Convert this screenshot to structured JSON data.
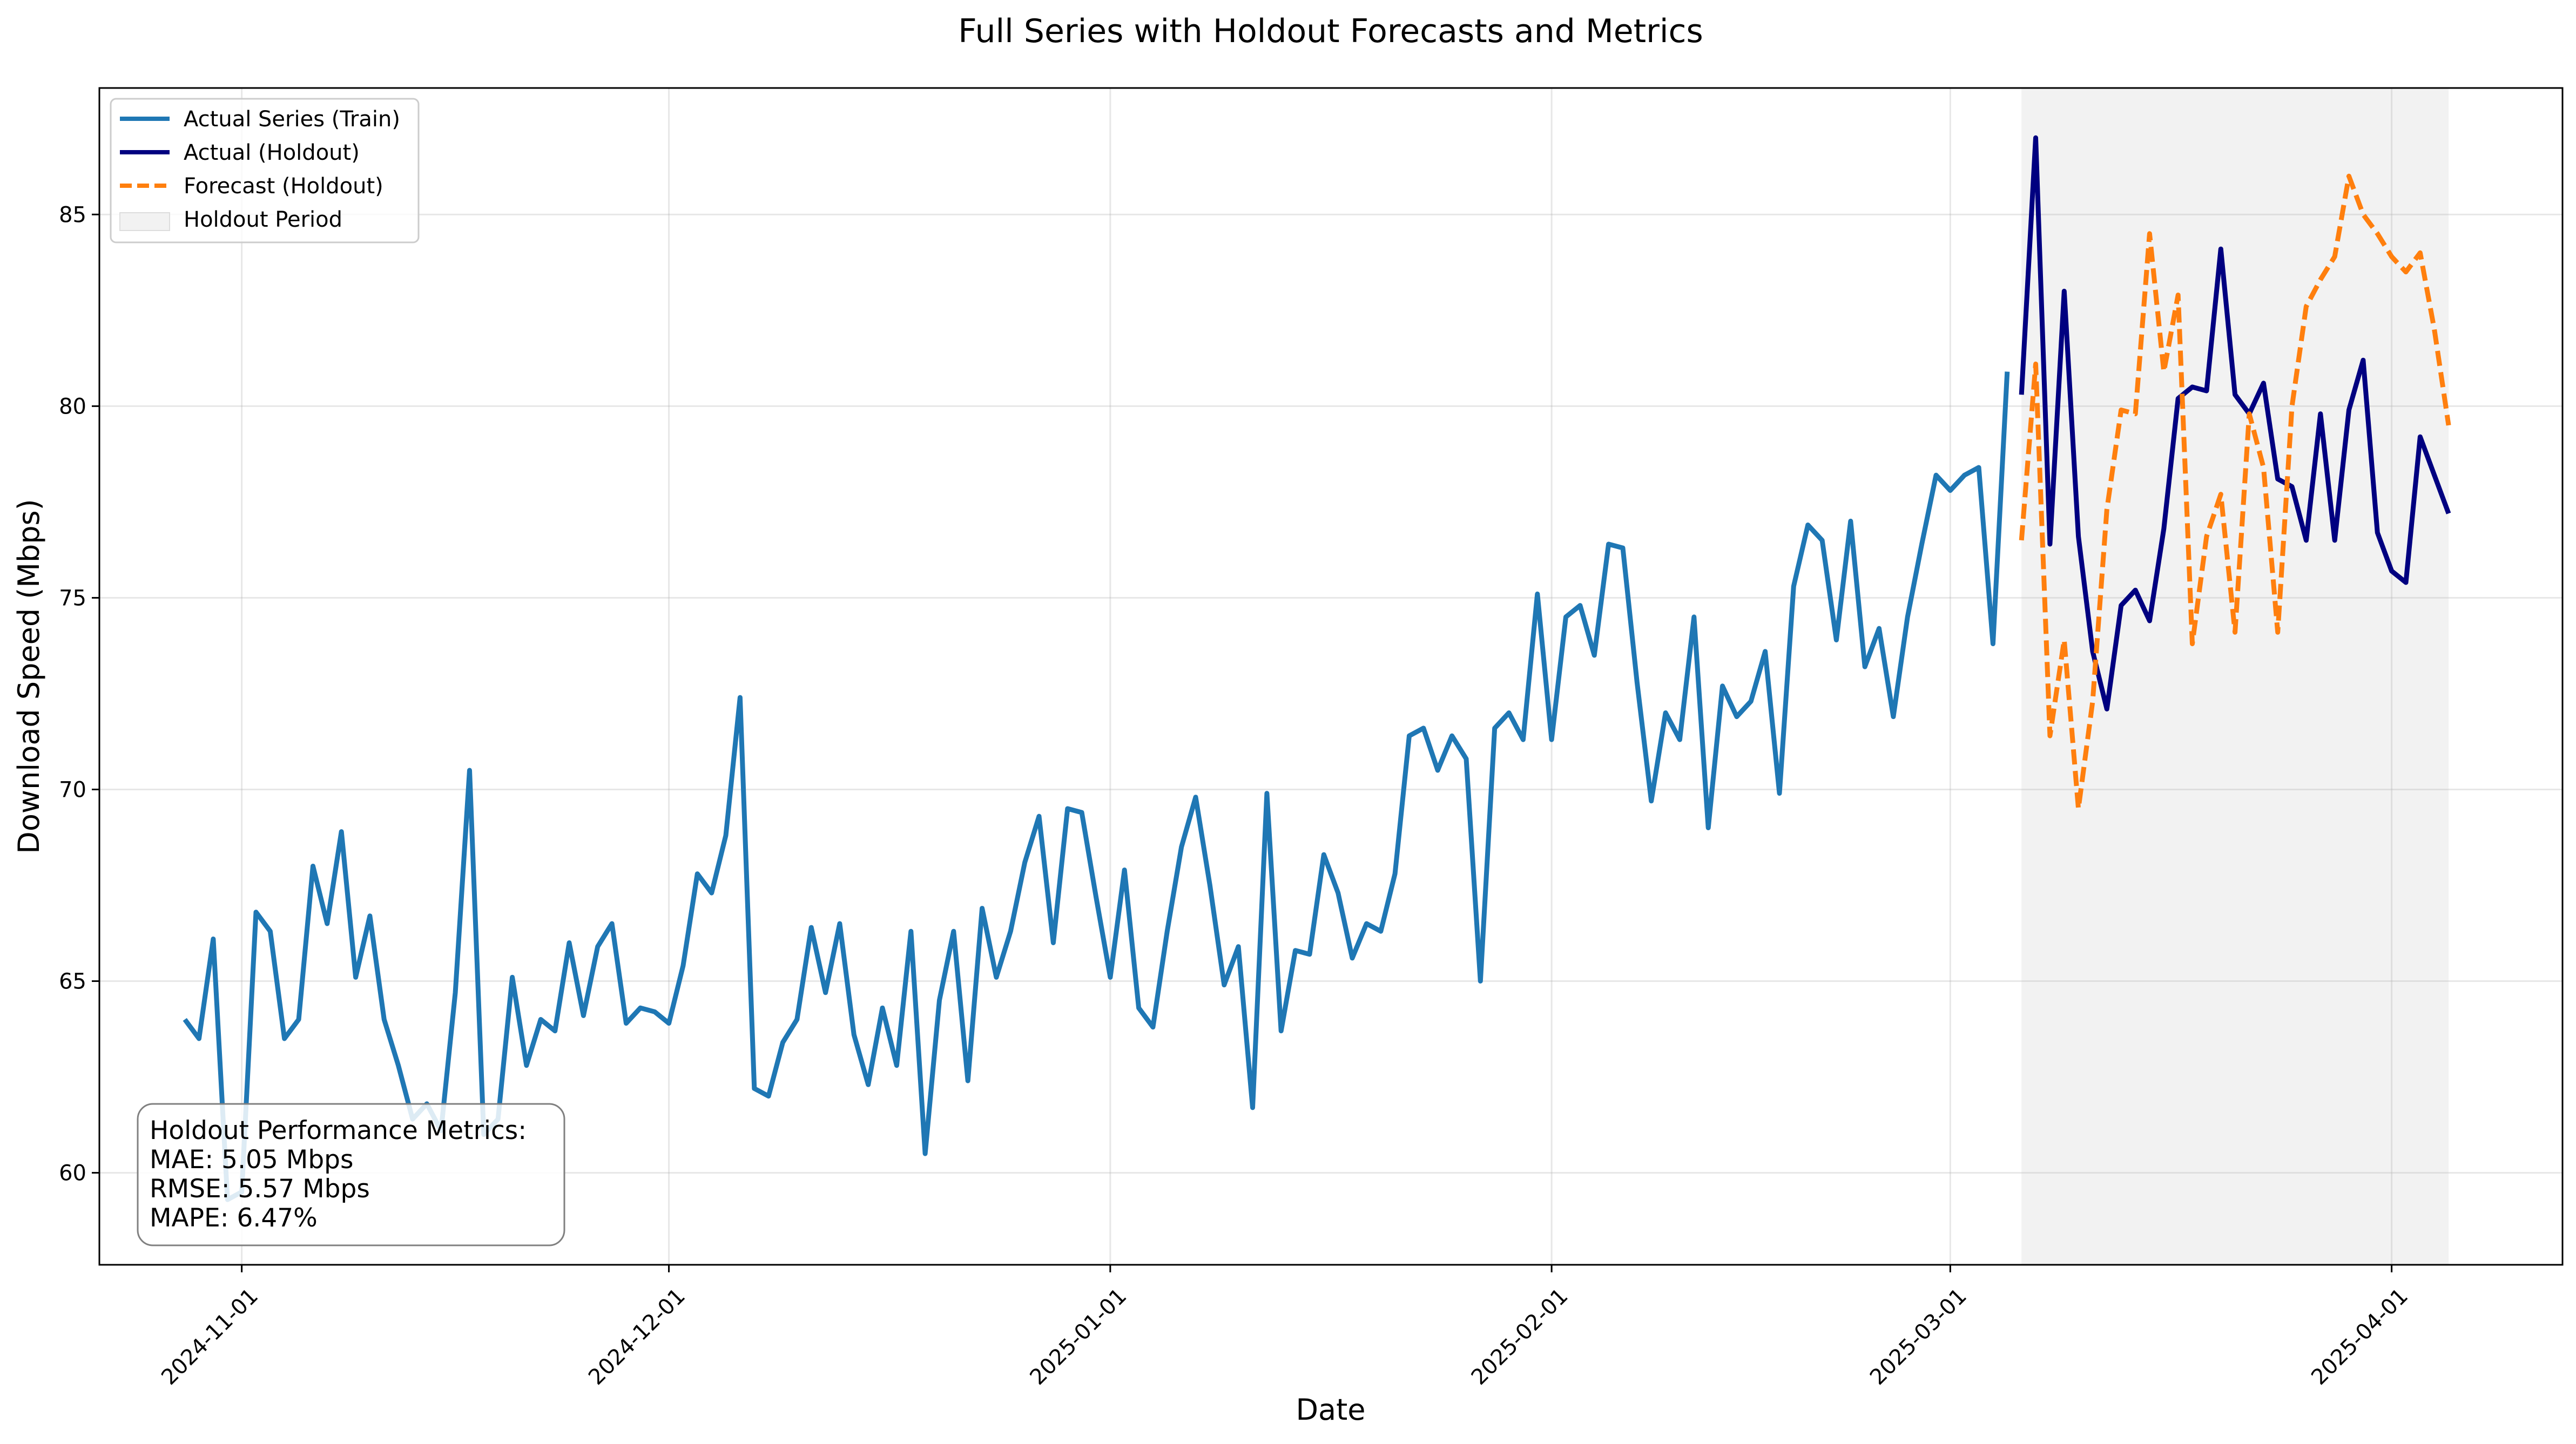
{
  "chart_data": {
    "type": "line",
    "title": "Full Series with Holdout Forecasts and Metrics",
    "xlabel": "Date",
    "ylabel": "Download Speed (Mbps)",
    "x_range": [
      "2024-10-22",
      "2025-04-13"
    ],
    "ylim": [
      57.6,
      88.3
    ],
    "grid": true,
    "legend_position": "top-left",
    "x_ticks": [
      "2024-11-01",
      "2024-12-01",
      "2025-01-01",
      "2025-02-01",
      "2025-03-01",
      "2025-04-01"
    ],
    "y_ticks": [
      60,
      65,
      70,
      75,
      80,
      85
    ],
    "holdout_period": {
      "start": "2025-03-06",
      "end": "2025-04-05"
    },
    "legend": [
      {
        "label": "Actual Series (Train)",
        "color": "#1f77b4",
        "style": "solid"
      },
      {
        "label": "Actual (Holdout)",
        "color": "#000080",
        "style": "solid"
      },
      {
        "label": "Forecast (Holdout)",
        "color": "#ff7f0e",
        "style": "dashed"
      },
      {
        "label": "Holdout Period",
        "color": "#f2f2f2",
        "style": "patch"
      }
    ],
    "metrics": {
      "heading": "Holdout Performance Metrics:",
      "lines": [
        "MAE: 5.05 Mbps",
        "RMSE: 5.57 Mbps",
        "MAPE: 6.47%"
      ]
    },
    "series": [
      {
        "name": "Actual Series (Train)",
        "color": "#1f77b4",
        "style": "solid",
        "start_date": "2024-10-28",
        "values": [
          64.0,
          63.5,
          66.1,
          59.3,
          59.5,
          66.8,
          66.3,
          63.5,
          64.0,
          68.0,
          66.5,
          68.9,
          65.1,
          66.7,
          64.0,
          62.8,
          61.4,
          61.8,
          61.1,
          64.7,
          70.5,
          61.0,
          61.4,
          65.1,
          62.8,
          64.0,
          63.7,
          66.0,
          64.1,
          65.9,
          66.5,
          63.9,
          64.3,
          64.2,
          63.9,
          65.4,
          67.8,
          67.3,
          68.8,
          72.4,
          62.2,
          62.0,
          63.4,
          64.0,
          66.4,
          64.7,
          66.5,
          63.6,
          62.3,
          64.3,
          62.8,
          66.3,
          60.5,
          64.5,
          66.3,
          62.4,
          66.9,
          65.1,
          66.3,
          68.1,
          69.3,
          66.0,
          69.5,
          69.4,
          67.2,
          65.1,
          67.9,
          64.3,
          63.8,
          66.3,
          68.5,
          69.8,
          67.5,
          64.9,
          65.9,
          61.7,
          69.9,
          63.7,
          65.8,
          65.7,
          68.3,
          67.3,
          65.6,
          66.5,
          66.3,
          67.8,
          71.4,
          71.6,
          70.5,
          71.4,
          70.8,
          65.0,
          71.6,
          72.0,
          71.3,
          75.1,
          71.3,
          74.5,
          74.8,
          73.5,
          76.4,
          76.3,
          72.8,
          69.7,
          72.0,
          71.3,
          74.5,
          69.0,
          72.7,
          71.9,
          72.3,
          73.6,
          69.9,
          75.3,
          76.9,
          76.5,
          73.9,
          77.0,
          73.2,
          74.2,
          71.9,
          74.5,
          76.4,
          78.2,
          77.8,
          78.2,
          78.4,
          73.8,
          80.9
        ]
      },
      {
        "name": "Actual (Holdout)",
        "color": "#000080",
        "style": "solid",
        "start_date": "2025-03-06",
        "values": [
          80.3,
          87.0,
          76.4,
          83.0,
          76.6,
          73.6,
          72.1,
          74.8,
          75.2,
          74.4,
          76.8,
          80.2,
          80.5,
          80.4,
          84.1,
          80.3,
          79.8,
          80.6,
          78.1,
          77.9,
          76.5,
          79.8,
          76.5,
          79.9,
          81.2,
          76.7,
          75.7,
          75.4,
          79.2,
          78.2,
          77.2
        ]
      },
      {
        "name": "Forecast (Holdout)",
        "color": "#ff7f0e",
        "style": "dashed",
        "x": [
          "2025-03-06",
          "2025-03-07",
          "2025-03-08",
          "2025-03-09",
          "2025-03-10",
          "2025-03-11",
          "2025-03-12",
          "2025-03-13",
          "2025-03-14",
          "2025-03-15",
          "2025-03-16",
          "2025-03-17",
          "2025-03-18",
          "2025-03-19",
          "2025-03-20",
          "2025-03-21",
          "2025-03-22",
          "2025-03-23",
          "2025-03-24",
          "2025-03-25",
          "2025-03-26",
          "2025-03-27",
          "2025-03-28",
          "2025-03-29",
          "2025-03-30",
          "2025-03-31",
          "2025-04-01",
          "2025-04-02",
          "2025-04-03",
          "2025-04-04",
          "2025-04-05"
        ],
        "values": [
          76.5,
          81.1,
          71.4,
          73.9,
          69.5,
          72.3,
          77.3,
          79.9,
          79.8,
          84.5,
          80.9,
          82.9,
          73.8,
          76.6,
          77.7,
          74.1,
          79.8,
          78.4,
          74.1,
          80.0,
          82.6,
          83.3,
          83.9,
          86.0,
          85.0,
          84.5,
          83.9,
          83.5,
          84.0,
          82.0,
          79.5
        ]
      }
    ]
  }
}
